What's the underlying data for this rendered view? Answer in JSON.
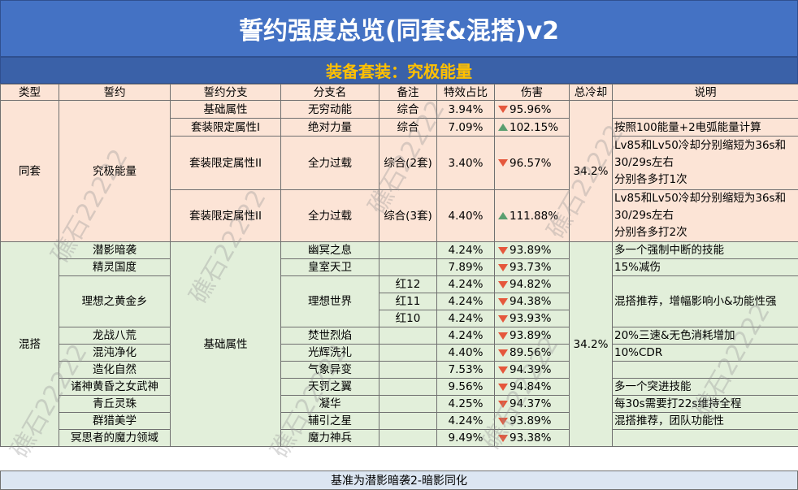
{
  "title": "誓约强度总览(同套&混搭)v2",
  "subtitle": "装备套装：究极能量",
  "headers": [
    "类型",
    "誓约",
    "誓约分支",
    "分支名",
    "备注",
    "特效占比",
    "伤害",
    "总冷却",
    "说明"
  ],
  "set": {
    "type": "同套",
    "oath": "究极能量",
    "cooldown": "34.2%",
    "rows": [
      {
        "branch": "基础属性",
        "name": "无穷动能",
        "note": "综合",
        "ratio": "3.94%",
        "dmg": "95.96%",
        "trend": "down",
        "desc": ""
      },
      {
        "branch": "套装限定属性I",
        "name": "绝对力量",
        "note": "综合",
        "ratio": "7.09%",
        "dmg": "102.15%",
        "trend": "up",
        "desc": "按照100能量+2电弧能量计算"
      },
      {
        "branch": "套装限定属性II",
        "name": "全力过载",
        "note": "综合(2套)",
        "ratio": "3.40%",
        "dmg": "96.57%",
        "trend": "down",
        "desc": "Lv85和Lv50冷却分别缩短为36s和30/29s左右\n分别各多打1次"
      },
      {
        "branch": "套装限定属性II",
        "name": "全力过载",
        "note": "综合(3套)",
        "ratio": "4.40%",
        "dmg": "111.88%",
        "trend": "up",
        "desc": "Lv85和Lv50冷却分别缩短为36s和30/29s左右\n分别各多打2次"
      }
    ]
  },
  "mix": {
    "type": "混搭",
    "branch": "基础属性",
    "cooldown": "34.2%",
    "rows": [
      {
        "oath": "潜影暗袭",
        "name": "幽冥之息",
        "note": "",
        "ratio": "4.24%",
        "dmg": "93.89%",
        "trend": "down",
        "desc": "多一个强制中断的技能"
      },
      {
        "oath": "精灵国度",
        "name": "皇室天卫",
        "note": "",
        "ratio": "7.89%",
        "dmg": "93.73%",
        "trend": "down",
        "desc": "15%减伤"
      },
      {
        "oath": "理想之黄金乡",
        "name": "理想世界",
        "note": "红12",
        "ratio": "4.24%",
        "dmg": "94.82%",
        "trend": "down",
        "desc": "混搭推荐，增幅影响小&功能性强"
      },
      {
        "oath": "",
        "name": "",
        "note": "红11",
        "ratio": "4.24%",
        "dmg": "94.38%",
        "trend": "down",
        "desc": ""
      },
      {
        "oath": "",
        "name": "",
        "note": "红10",
        "ratio": "4.24%",
        "dmg": "93.93%",
        "trend": "down",
        "desc": ""
      },
      {
        "oath": "龙战八荒",
        "name": "焚世烈焰",
        "note": "",
        "ratio": "4.24%",
        "dmg": "93.89%",
        "trend": "down",
        "desc": "20%三速&无色消耗增加"
      },
      {
        "oath": "混沌净化",
        "name": "光辉洗礼",
        "note": "",
        "ratio": "4.40%",
        "dmg": "89.56%",
        "trend": "down",
        "desc": "10%CDR"
      },
      {
        "oath": "造化自然",
        "name": "气象异变",
        "note": "",
        "ratio": "7.53%",
        "dmg": "94.39%",
        "trend": "down",
        "desc": ""
      },
      {
        "oath": "诸神黄昏之女武神",
        "name": "天罚之翼",
        "note": "",
        "ratio": "9.56%",
        "dmg": "94.84%",
        "trend": "down",
        "desc": "多一个突进技能"
      },
      {
        "oath": "青丘灵珠",
        "name": "凝华",
        "note": "",
        "ratio": "4.25%",
        "dmg": "94.37%",
        "trend": "down",
        "desc": "每30s需要打22s维持全程"
      },
      {
        "oath": "群猎美学",
        "name": "辅引之星",
        "note": "",
        "ratio": "4.24%",
        "dmg": "93.89%",
        "trend": "down",
        "desc": "混搭推荐，团队功能性"
      },
      {
        "oath": "冥思者的魔力领域",
        "name": "魔力神兵",
        "note": "",
        "ratio": "9.49%",
        "dmg": "93.38%",
        "trend": "down",
        "desc": ""
      }
    ]
  },
  "footer": "基准为潜影暗袭2-暗影同化",
  "watermark": "礁石22222",
  "colors": {
    "title_bg": "#4472c4",
    "subtitle_text": "#ffc000",
    "set_bg": "#fce4d6",
    "mix_bg": "#e2efda",
    "down": "#e5573c",
    "up": "#5a9e6f"
  }
}
